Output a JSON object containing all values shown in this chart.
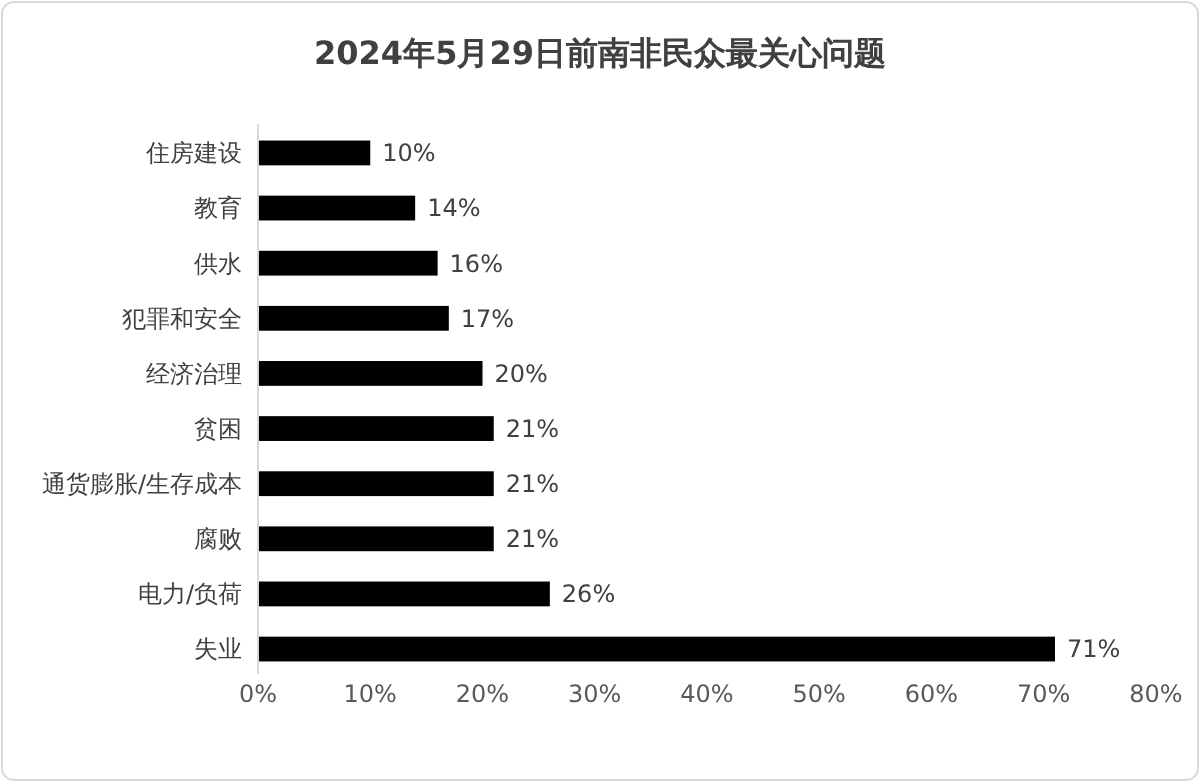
{
  "chart_data": {
    "type": "bar",
    "orientation": "horizontal",
    "title": "2024年5月29日前南非民众最关心问题",
    "categories": [
      "住房建设",
      "教育",
      "供水",
      "犯罪和安全",
      "经济治理",
      "贫困",
      "通货膨胀/生存成本",
      "腐败",
      "电力/负荷",
      "失业"
    ],
    "values": [
      10,
      14,
      16,
      17,
      20,
      21,
      21,
      21,
      26,
      71
    ],
    "value_labels": [
      "10%",
      "14%",
      "16%",
      "17%",
      "20%",
      "21%",
      "21%",
      "21%",
      "26%",
      "71%"
    ],
    "color": "#000000",
    "xlim": [
      0,
      80
    ],
    "xticks": [
      {
        "value": 0,
        "label": "0%"
      },
      {
        "value": 10,
        "label": "10%"
      },
      {
        "value": 20,
        "label": "20%"
      },
      {
        "value": 30,
        "label": "30%"
      },
      {
        "value": 40,
        "label": "40%"
      },
      {
        "value": 50,
        "label": "50%"
      },
      {
        "value": 60,
        "label": "60%"
      },
      {
        "value": 70,
        "label": "70%"
      },
      {
        "value": 80,
        "label": "80%"
      }
    ],
    "grid": false
  }
}
